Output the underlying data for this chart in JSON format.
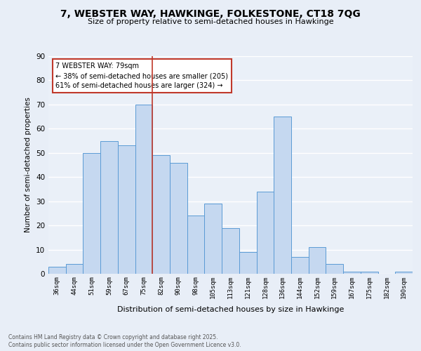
{
  "title": "7, WEBSTER WAY, HAWKINGE, FOLKESTONE, CT18 7QG",
  "subtitle": "Size of property relative to semi-detached houses in Hawkinge",
  "xlabel": "Distribution of semi-detached houses by size in Hawkinge",
  "ylabel": "Number of semi-detached properties",
  "categories": [
    "36sqm",
    "44sqm",
    "51sqm",
    "59sqm",
    "67sqm",
    "75sqm",
    "82sqm",
    "90sqm",
    "98sqm",
    "105sqm",
    "113sqm",
    "121sqm",
    "128sqm",
    "136sqm",
    "144sqm",
    "152sqm",
    "159sqm",
    "167sqm",
    "175sqm",
    "182sqm",
    "190sqm"
  ],
  "values": [
    3,
    4,
    50,
    55,
    53,
    70,
    49,
    46,
    24,
    29,
    19,
    9,
    34,
    65,
    7,
    11,
    4,
    1,
    1,
    0,
    1
  ],
  "bar_color": "#c5d8f0",
  "bar_edge_color": "#5b9bd5",
  "property_bin_index": 5,
  "vline_color": "#c0392b",
  "annotation_text": "7 WEBSTER WAY: 79sqm\n← 38% of semi-detached houses are smaller (205)\n61% of semi-detached houses are larger (324) →",
  "annotation_box_color": "#ffffff",
  "annotation_box_edge": "#c0392b",
  "bg_color": "#e8eef7",
  "plot_bg_color": "#eaf0f8",
  "grid_color": "#ffffff",
  "footer_line1": "Contains HM Land Registry data © Crown copyright and database right 2025.",
  "footer_line2": "Contains public sector information licensed under the Open Government Licence v3.0.",
  "ylim": [
    0,
    90
  ],
  "yticks": [
    0,
    10,
    20,
    30,
    40,
    50,
    60,
    70,
    80,
    90
  ]
}
